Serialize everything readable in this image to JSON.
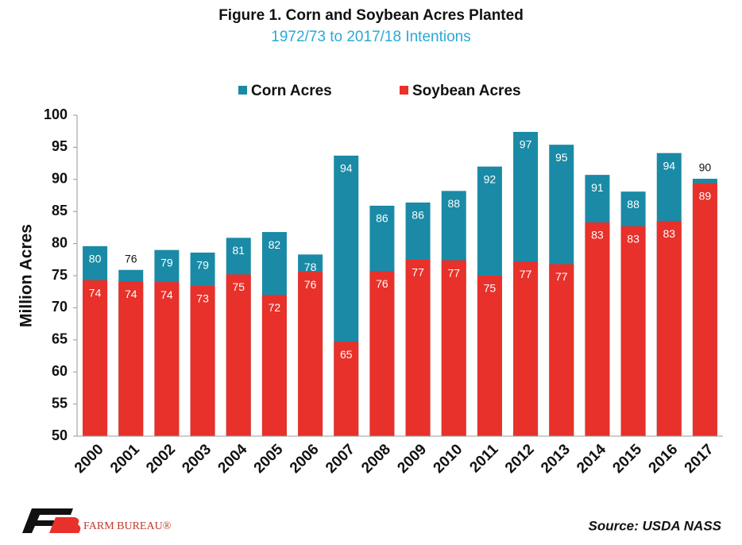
{
  "chart_data": {
    "type": "overlap_bar",
    "title": "Figure 1. Corn and Soybean Acres Planted",
    "subtitle": "1972/73 to 2017/18 Intentions",
    "y_label": "Million Acres",
    "source": "Source: USDA NASS",
    "logo_text": "FARM BUREAU®",
    "categories": [
      "2000",
      "2001",
      "2002",
      "2003",
      "2004",
      "2005",
      "2006",
      "2007",
      "2008",
      "2009",
      "2010",
      "2011",
      "2012",
      "2013",
      "2014",
      "2015",
      "2016",
      "2017"
    ],
    "series": [
      {
        "name": "Corn Acres",
        "color": "#1a8aa6",
        "values": [
          79.6,
          75.9,
          79.0,
          78.6,
          80.9,
          81.8,
          78.3,
          93.7,
          85.9,
          86.4,
          88.2,
          92.0,
          97.4,
          95.4,
          90.7,
          88.1,
          94.1,
          90.1
        ],
        "value_labels": [
          "80",
          "76",
          "79",
          "79",
          "81",
          "82",
          "78",
          "94",
          "86",
          "86",
          "88",
          "92",
          "97",
          "95",
          "91",
          "88",
          "94",
          "90"
        ]
      },
      {
        "name": "Soybean Acres",
        "color": "#e8312a",
        "values": [
          74.3,
          74.1,
          74.0,
          73.4,
          75.2,
          72.0,
          75.6,
          64.7,
          75.7,
          77.5,
          77.4,
          75.0,
          77.2,
          76.8,
          83.3,
          82.7,
          83.5,
          89.4
        ],
        "value_labels": [
          "74",
          "74",
          "74",
          "73",
          "75",
          "72",
          "76",
          "65",
          "76",
          "77",
          "77",
          "75",
          "77",
          "77",
          "83",
          "83",
          "83",
          "89"
        ]
      }
    ],
    "ylim": [
      50,
      100
    ],
    "yticks": [
      50,
      55,
      60,
      65,
      70,
      75,
      80,
      85,
      90,
      95,
      100
    ],
    "legend": "top"
  }
}
